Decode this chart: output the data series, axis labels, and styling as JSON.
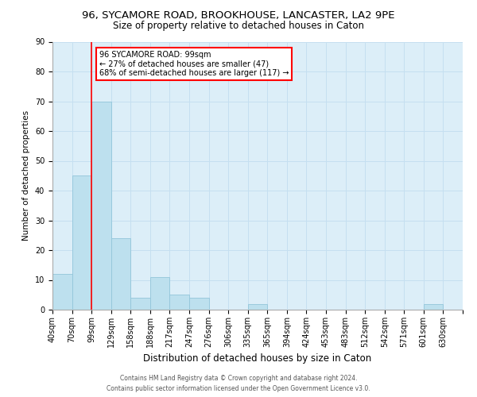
{
  "title": "96, SYCAMORE ROAD, BROOKHOUSE, LANCASTER, LA2 9PE",
  "subtitle": "Size of property relative to detached houses in Caton",
  "xlabel": "Distribution of detached houses by size in Caton",
  "ylabel": "Number of detached properties",
  "footer_line1": "Contains HM Land Registry data © Crown copyright and database right 2024.",
  "footer_line2": "Contains public sector information licensed under the Open Government Licence v3.0.",
  "bin_labels": [
    "40sqm",
    "70sqm",
    "99sqm",
    "129sqm",
    "158sqm",
    "188sqm",
    "217sqm",
    "247sqm",
    "276sqm",
    "306sqm",
    "335sqm",
    "365sqm",
    "394sqm",
    "424sqm",
    "453sqm",
    "483sqm",
    "512sqm",
    "542sqm",
    "571sqm",
    "601sqm",
    "630sqm"
  ],
  "bar_values": [
    12,
    45,
    70,
    24,
    4,
    11,
    5,
    4,
    0,
    0,
    2,
    0,
    0,
    0,
    0,
    0,
    0,
    0,
    0,
    2,
    0
  ],
  "bar_color": "#bde0ee",
  "bar_edge_color": "#92c5da",
  "grid_color": "#c5dff0",
  "background_color": "#dceef8",
  "vline_color": "red",
  "annotation_text": "96 SYCAMORE ROAD: 99sqm\n← 27% of detached houses are smaller (47)\n68% of semi-detached houses are larger (117) →",
  "annotation_box_color": "white",
  "annotation_box_edge_color": "red",
  "ylim": [
    0,
    90
  ],
  "yticks": [
    0,
    10,
    20,
    30,
    40,
    50,
    60,
    70,
    80,
    90
  ],
  "title_fontsize": 9.5,
  "subtitle_fontsize": 8.5,
  "xlabel_fontsize": 8.5,
  "ylabel_fontsize": 7.5,
  "tick_fontsize": 7,
  "footer_fontsize": 5.5
}
